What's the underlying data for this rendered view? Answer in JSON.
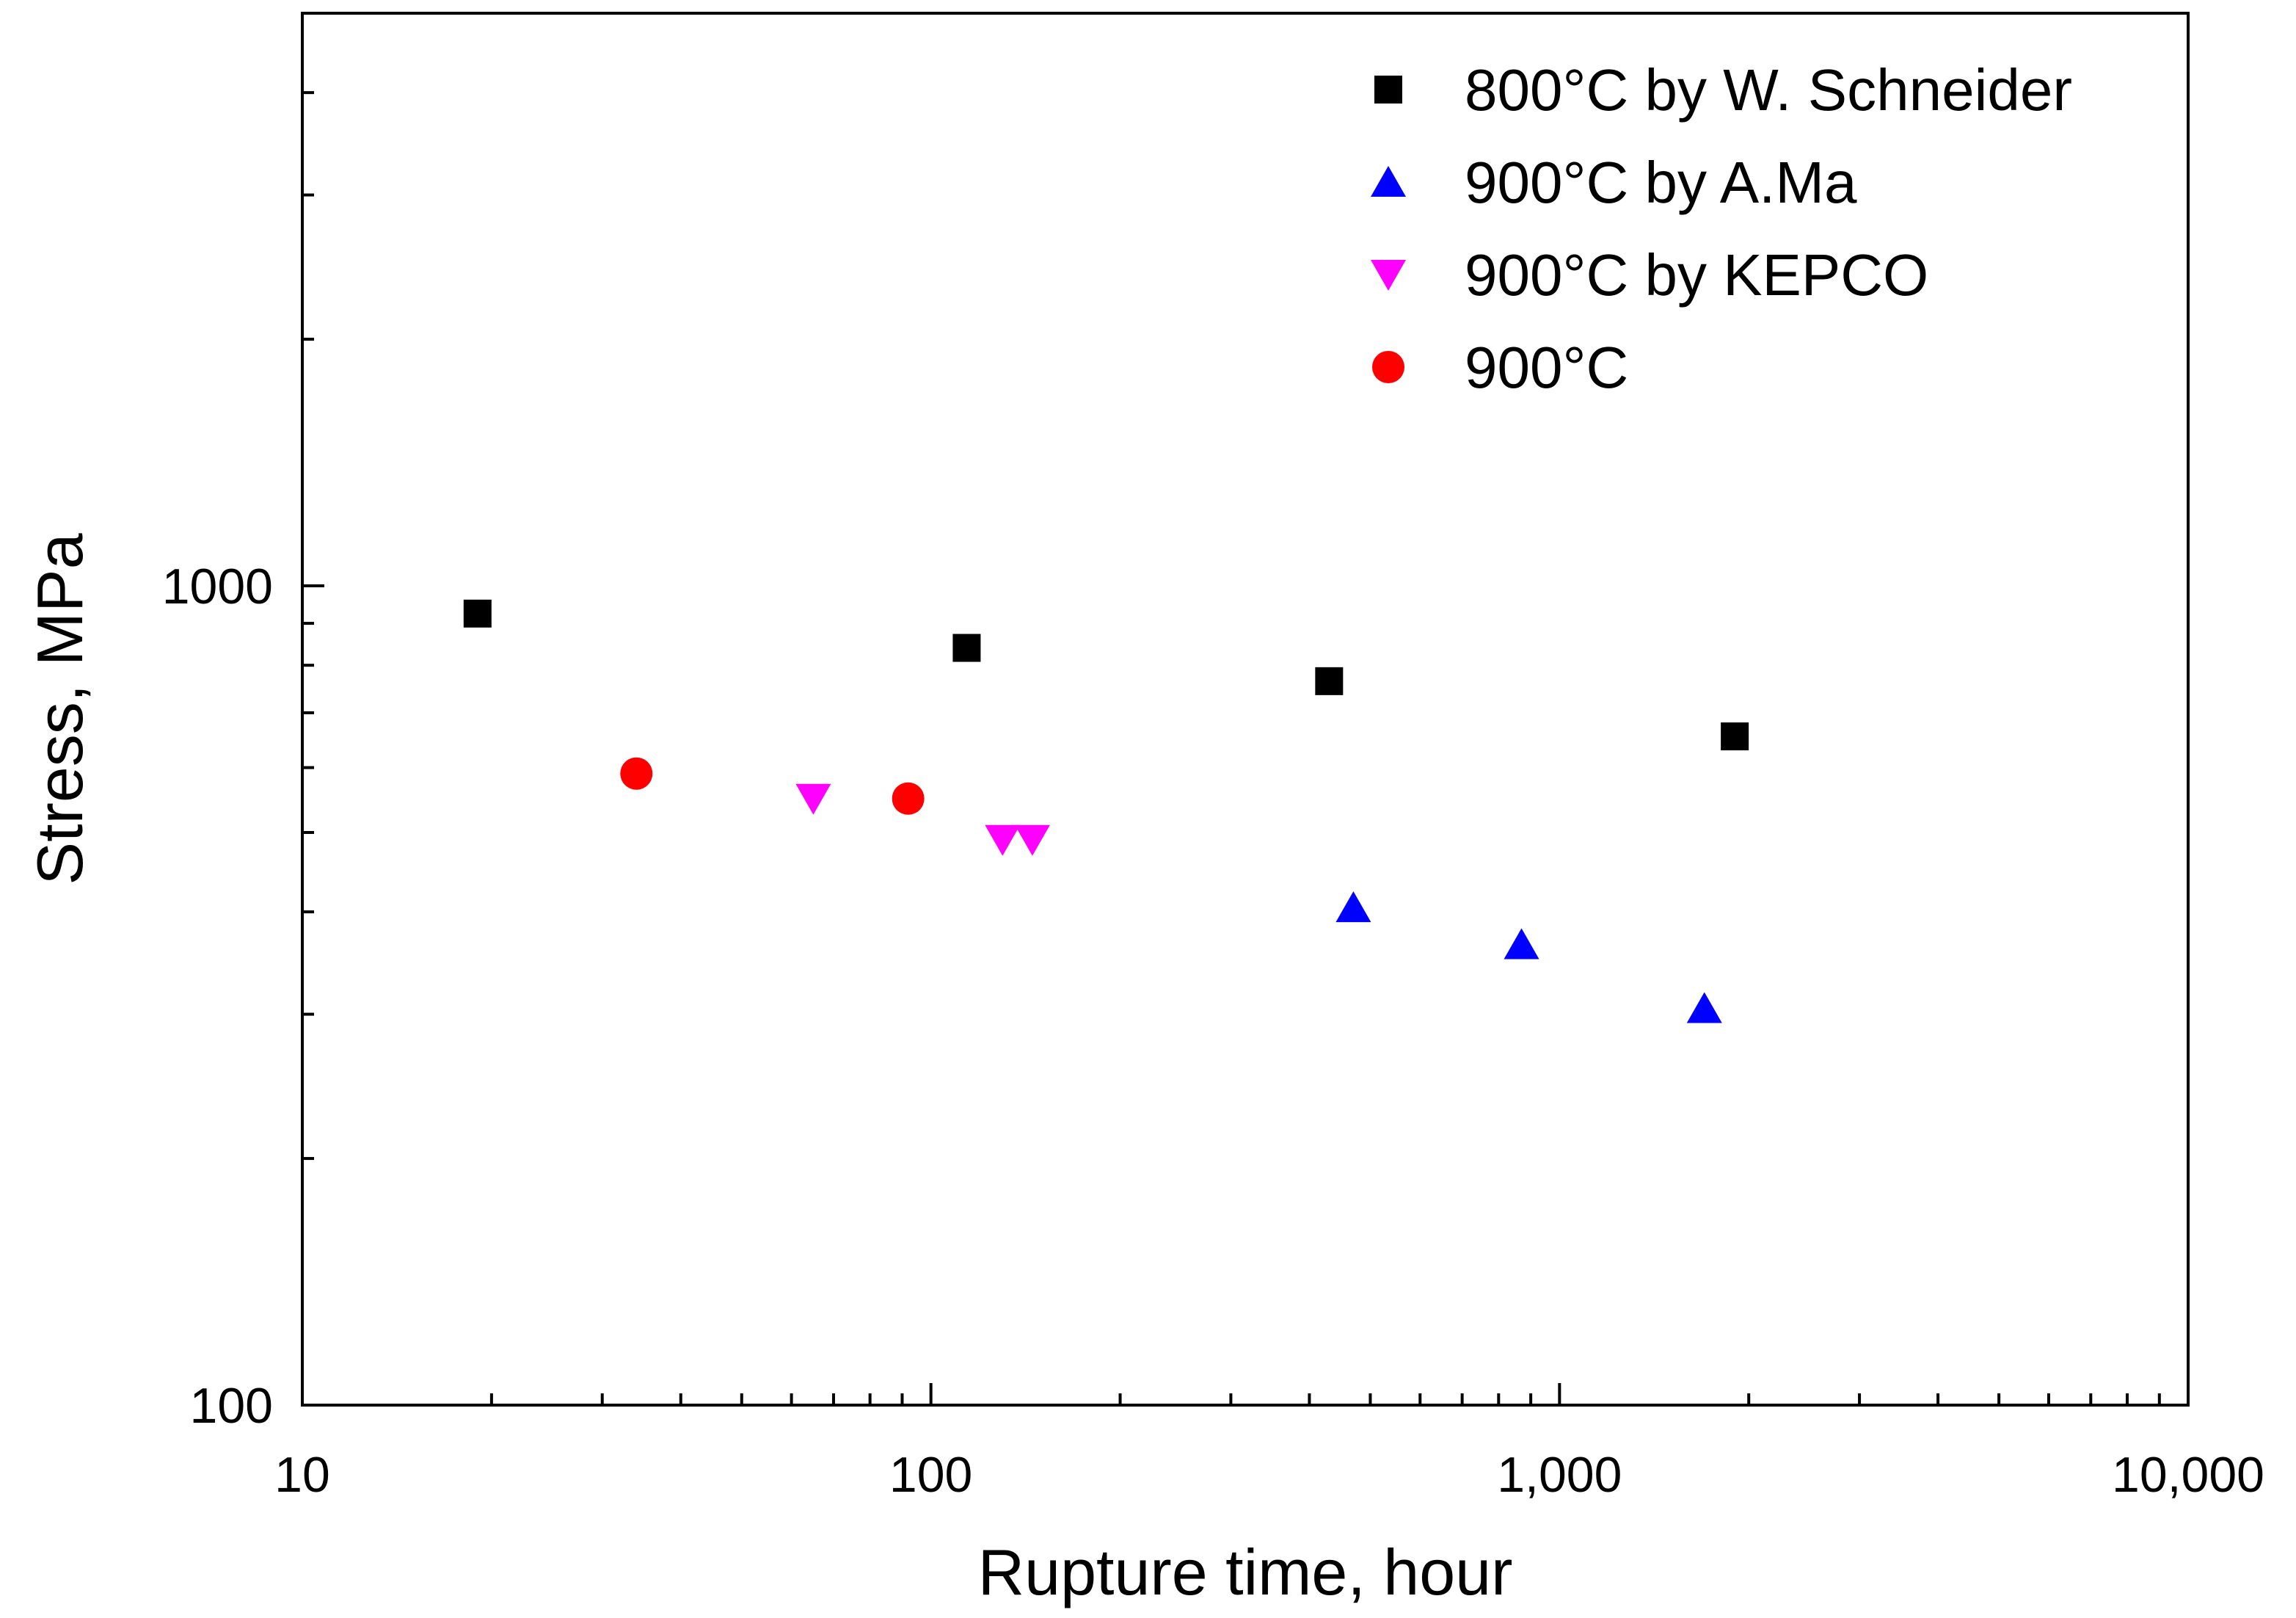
{
  "chart_data": {
    "type": "scatter",
    "xscale": "log",
    "yscale": "log",
    "xlim": [
      10,
      10000
    ],
    "ylim": [
      100,
      5000
    ],
    "xlabel": "Rupture time, hour",
    "ylabel": "Stress, MPa",
    "xticks": [
      {
        "value": 10,
        "label": "10"
      },
      {
        "value": 100,
        "label": "100"
      },
      {
        "value": 1000,
        "label": "1,000"
      },
      {
        "value": 10000,
        "label": "10,000"
      }
    ],
    "yticks": [
      {
        "value": 100,
        "label": "100"
      },
      {
        "value": 1000,
        "label": "1000"
      }
    ],
    "legend_position": "top-right",
    "series": [
      {
        "name": "800°C by W. Schneider",
        "marker": "square",
        "color": "#000000",
        "points": [
          [
            19,
            925
          ],
          [
            114,
            840
          ],
          [
            430,
            765
          ],
          [
            1900,
            655
          ]
        ]
      },
      {
        "name": "900°C by A.Ma",
        "marker": "triangle-up",
        "color": "#0000ff",
        "points": [
          [
            470,
            405
          ],
          [
            870,
            365
          ],
          [
            1700,
            305
          ]
        ]
      },
      {
        "name": "900°C by KEPCO",
        "marker": "triangle-down",
        "color": "#ff00ff",
        "points": [
          [
            65,
            550
          ],
          [
            130,
            490
          ],
          [
            145,
            490
          ]
        ]
      },
      {
        "name": "900°C",
        "marker": "circle",
        "color": "#ff0000",
        "points": [
          [
            34,
            590
          ],
          [
            92,
            550
          ]
        ]
      }
    ]
  }
}
